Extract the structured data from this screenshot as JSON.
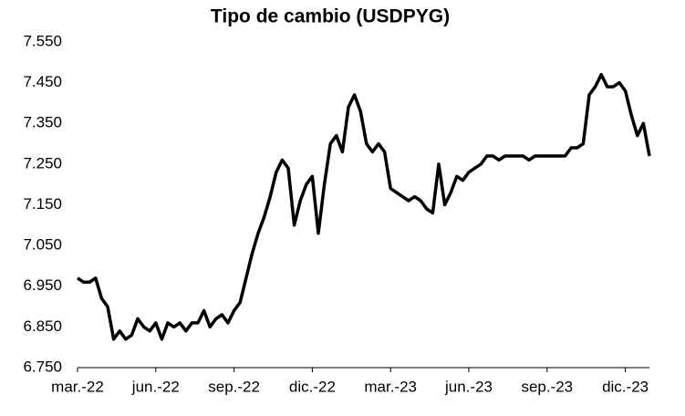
{
  "chart_data": {
    "type": "line",
    "title": "Tipo de cambio (USDPYG)",
    "categories": [
      "mar.-22",
      null,
      null,
      null,
      null,
      null,
      null,
      null,
      null,
      null,
      null,
      null,
      null,
      "jun.-22",
      null,
      null,
      null,
      null,
      null,
      null,
      null,
      null,
      null,
      null,
      null,
      null,
      "sep.-22",
      null,
      null,
      null,
      null,
      null,
      null,
      null,
      null,
      null,
      null,
      null,
      null,
      "dic.-22",
      null,
      null,
      null,
      null,
      null,
      null,
      null,
      null,
      null,
      null,
      null,
      null,
      "mar.-23",
      null,
      null,
      null,
      null,
      null,
      null,
      null,
      null,
      null,
      null,
      null,
      null,
      "jun.-23",
      null,
      null,
      null,
      null,
      null,
      null,
      null,
      null,
      null,
      null,
      null,
      null,
      "sep.-23",
      null,
      null,
      null,
      null,
      null,
      null,
      null,
      null,
      null,
      null,
      null,
      null,
      "dic.-23",
      null,
      null,
      null,
      null
    ],
    "values": [
      6.97,
      6.96,
      6.96,
      6.97,
      6.92,
      6.9,
      6.82,
      6.84,
      6.82,
      6.83,
      6.87,
      6.85,
      6.84,
      6.86,
      6.82,
      6.86,
      6.85,
      6.86,
      6.84,
      6.86,
      6.86,
      6.89,
      6.85,
      6.87,
      6.88,
      6.86,
      6.89,
      6.91,
      6.97,
      7.03,
      7.08,
      7.12,
      7.17,
      7.23,
      7.26,
      7.24,
      7.1,
      7.16,
      7.2,
      7.22,
      7.08,
      7.2,
      7.3,
      7.32,
      7.28,
      7.39,
      7.42,
      7.38,
      7.3,
      7.28,
      7.3,
      7.28,
      7.19,
      7.18,
      7.17,
      7.16,
      7.17,
      7.16,
      7.14,
      7.13,
      7.25,
      7.15,
      7.18,
      7.22,
      7.21,
      7.23,
      7.24,
      7.25,
      7.27,
      7.27,
      7.26,
      7.27,
      7.27,
      7.27,
      7.27,
      7.26,
      7.27,
      7.27,
      7.27,
      7.27,
      7.27,
      7.27,
      7.29,
      7.29,
      7.3,
      7.42,
      7.44,
      7.47,
      7.44,
      7.44,
      7.45,
      7.43,
      7.37,
      7.32,
      7.35,
      7.27
    ],
    "color": "#000000",
    "ylim": [
      6.75,
      7.55
    ],
    "yticks": [
      {
        "value": 6.75,
        "label": "6.750"
      },
      {
        "value": 6.85,
        "label": "6.850"
      },
      {
        "value": 6.95,
        "label": "6.950"
      },
      {
        "value": 7.05,
        "label": "7.050"
      },
      {
        "value": 7.15,
        "label": "7.150"
      },
      {
        "value": 7.25,
        "label": "7.250"
      },
      {
        "value": 7.35,
        "label": "7.350"
      },
      {
        "value": 7.45,
        "label": "7.450"
      },
      {
        "value": 7.55,
        "label": "7.550"
      }
    ],
    "grid": false
  }
}
